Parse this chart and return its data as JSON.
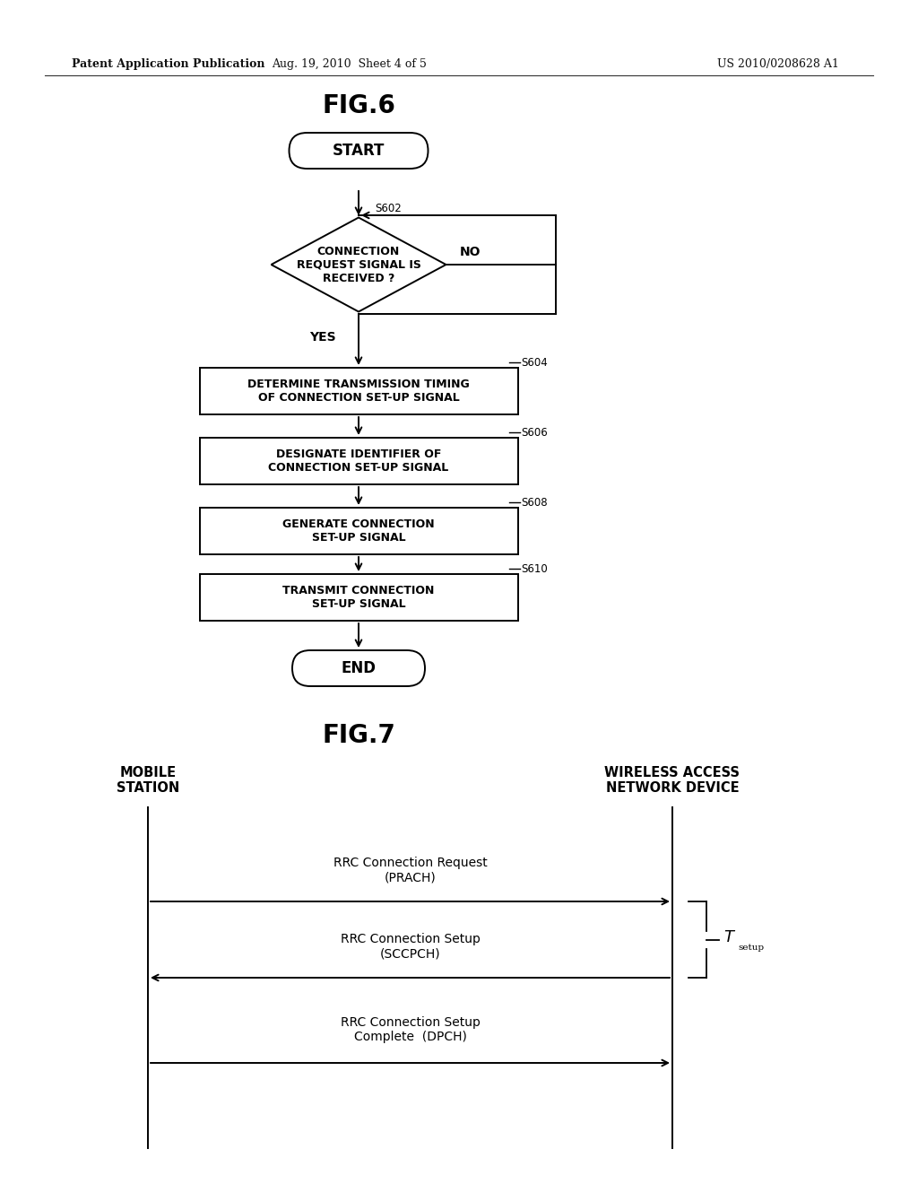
{
  "bg_color": "#ffffff",
  "text_color": "#000000",
  "header_left": "Patent Application Publication",
  "header_mid": "Aug. 19, 2010  Sheet 4 of 5",
  "header_right": "US 2010/0208628 A1",
  "fig6_title": "FIG.6",
  "fig7_title": "FIG.7",
  "flowchart": {
    "start_label": "START",
    "end_label": "END",
    "diamond_label": "CONNECTION\nREQUEST SIGNAL IS\nRECEIVED ?",
    "diamond_step": "S602",
    "yes_label": "YES",
    "no_label": "NO",
    "boxes": [
      {
        "step": "S604",
        "text": "DETERMINE TRANSMISSION TIMING\nOF CONNECTION SET-UP SIGNAL"
      },
      {
        "step": "S606",
        "text": "DESIGNATE IDENTIFIER OF\nCONNECTION SET-UP SIGNAL"
      },
      {
        "step": "S608",
        "text": "GENERATE CONNECTION\nSET-UP SIGNAL"
      },
      {
        "step": "S610",
        "text": "TRANSMIT CONNECTION\nSET-UP SIGNAL"
      }
    ]
  },
  "sequence": {
    "left_label": "MOBILE\nSTATION",
    "right_label": "WIRELESS ACCESS\nNETWORK DEVICE",
    "messages": [
      {
        "text": "RRC Connection Request\n(PRACH)",
        "direction": "right"
      },
      {
        "text": "RRC Connection Setup\n(SCCPCH)",
        "direction": "left"
      },
      {
        "text": "RRC Connection Setup\nComplete  (DPCH)",
        "direction": "right"
      }
    ],
    "brace_label": "T",
    "brace_subscript": "setup"
  }
}
